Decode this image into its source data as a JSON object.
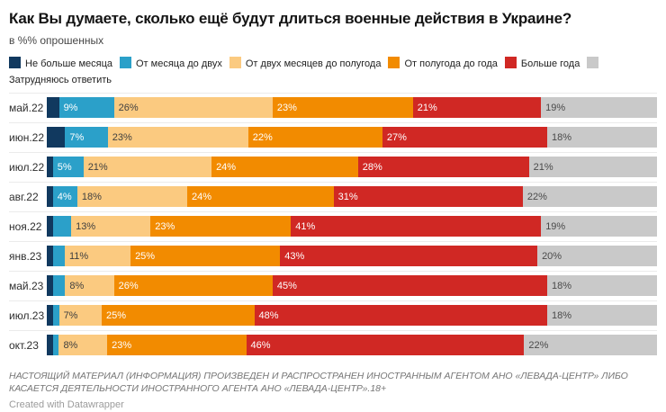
{
  "header": {
    "title": "Как Вы думаете, сколько ещё будут длиться военные действия в Украине?",
    "subtitle": "в %% опрошенных"
  },
  "chart_data": {
    "type": "bar",
    "variant": "stacked-horizontal",
    "legend_position": "top",
    "grid": "row-separators",
    "label_suffix": "%",
    "min_label_value": 4,
    "categories": [
      "май.22",
      "июн.22",
      "июл.22",
      "авг.22",
      "ноя.22",
      "янв.23",
      "май.23",
      "июл.23",
      "окт.23"
    ],
    "series": [
      {
        "name": "Не больше месяца",
        "color": "#11395f",
        "text_color": "#ffffff",
        "values": [
          2,
          3,
          1,
          1,
          1,
          1,
          1,
          1,
          1
        ]
      },
      {
        "name": "От месяца до двух",
        "color": "#2ba0c9",
        "text_color": "#ffffff",
        "values": [
          9,
          7,
          5,
          4,
          3,
          2,
          2,
          1,
          1
        ]
      },
      {
        "name": "От двух месяцев до полугода",
        "color": "#fbca80",
        "text_color": "#3f3f3f",
        "values": [
          26,
          23,
          21,
          18,
          13,
          11,
          8,
          7,
          8
        ]
      },
      {
        "name": "От полугода до года",
        "color": "#f28b00",
        "text_color": "#ffffff",
        "values": [
          23,
          22,
          24,
          24,
          23,
          25,
          26,
          25,
          23
        ]
      },
      {
        "name": "Больше года",
        "color": "#d02824",
        "text_color": "#ffffff",
        "values": [
          21,
          27,
          28,
          31,
          41,
          43,
          45,
          48,
          46
        ]
      },
      {
        "name": "Затрудняюсь ответить",
        "color": "#c9c9c9",
        "text_color": "#4a4a4a",
        "values": [
          19,
          18,
          21,
          22,
          19,
          20,
          18,
          18,
          22
        ]
      }
    ]
  },
  "footer": {
    "disclaimer": "НАСТОЯЩИЙ МАТЕРИАЛ (ИНФОРМАЦИЯ) ПРОИЗВЕДЕН И РАСПРОСТРАНЕН ИНОСТРАННЫМ АГЕНТОМ АНО «ЛЕВАДА-ЦЕНТР» ЛИБО КАСАЕТСЯ ДЕЯТЕЛЬНОСТИ ИНОСТРАННОГО АГЕНТА АНО «ЛЕВАДА-ЦЕНТР».18+",
    "attribution": "Created with Datawrapper"
  }
}
